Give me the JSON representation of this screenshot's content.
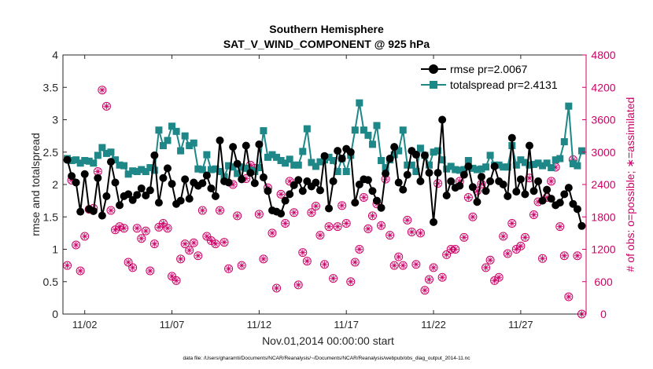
{
  "chart_data": {
    "type": "line",
    "title": "Southern Hemisphere",
    "subtitle": "SAT_V_WIND_COMPONENT @ 925 hPa",
    "xlabel": "Nov.01,2014 00:00:00 start",
    "ylabel": "rmse and totalspread",
    "y2label": "# of obs: o=possible; ∗=assimilated",
    "footer": "data file: /Users/gharamti/Documents/NCAR/Reanalysis/~/Documents/NCAR/Reanalysis/webpub/obs_diag_output_2014-11.nc",
    "xlim": [
      0.75,
      30.75
    ],
    "ylim": [
      0,
      4
    ],
    "y2lim": [
      0,
      4800
    ],
    "x_ticks": [
      2,
      7,
      12,
      17,
      22,
      27
    ],
    "x_tick_labels": [
      "11/02",
      "11/07",
      "11/12",
      "11/17",
      "11/22",
      "11/27"
    ],
    "y_ticks": [
      0,
      0.5,
      1,
      1.5,
      2,
      2.5,
      3,
      3.5,
      4
    ],
    "y_tick_labels": [
      "0",
      "0.5",
      "1",
      "1.5",
      "2",
      "2.5",
      "3",
      "3.5",
      "4"
    ],
    "y2_ticks": [
      0,
      600,
      1200,
      1800,
      2400,
      3000,
      3600,
      4200,
      4800
    ],
    "y2_tick_labels": [
      "0",
      "600",
      "1200",
      "1800",
      "2400",
      "3000",
      "3600",
      "4200",
      "4800"
    ],
    "colors": {
      "rmse": "#000000",
      "spread": "#1e8787",
      "obs": "#cc0066",
      "axis": "#262626"
    },
    "legend": [
      {
        "name": "rmse pr=2.0067",
        "series": "rmse"
      },
      {
        "name": "totalspread pr=2.4131",
        "series": "spread"
      }
    ],
    "series": [
      {
        "name": "rmse",
        "x": [
          1.0,
          1.25,
          1.5,
          1.75,
          2.0,
          2.25,
          2.5,
          2.75,
          3.0,
          3.25,
          3.5,
          3.75,
          4.0,
          4.25,
          4.5,
          4.75,
          5.0,
          5.25,
          5.5,
          5.75,
          6.0,
          6.25,
          6.5,
          6.75,
          7.0,
          7.25,
          7.5,
          7.75,
          8.0,
          8.25,
          8.5,
          8.75,
          9.0,
          9.25,
          9.5,
          9.75,
          10.0,
          10.25,
          10.5,
          10.75,
          11.0,
          11.25,
          11.5,
          11.75,
          12.0,
          12.25,
          12.5,
          12.75,
          13.0,
          13.25,
          13.5,
          13.75,
          14.0,
          14.25,
          14.5,
          14.75,
          15.0,
          15.25,
          15.5,
          15.75,
          16.0,
          16.25,
          16.5,
          16.75,
          17.0,
          17.25,
          17.5,
          17.75,
          18.0,
          18.25,
          18.5,
          18.75,
          19.0,
          19.25,
          19.5,
          19.75,
          20.0,
          20.25,
          20.5,
          20.75,
          21.0,
          21.25,
          21.5,
          21.75,
          22.0,
          22.25,
          22.5,
          22.75,
          23.0,
          23.25,
          23.5,
          23.75,
          24.0,
          24.25,
          24.5,
          24.75,
          25.0,
          25.25,
          25.5,
          25.75,
          26.0,
          26.25,
          26.5,
          26.75,
          27.0,
          27.25,
          27.5,
          27.75,
          28.0,
          28.25,
          28.5,
          28.75,
          29.0,
          29.25,
          29.5,
          29.75,
          30.0,
          30.25,
          30.5
        ],
        "values": [
          2.38,
          2.13,
          2.03,
          1.58,
          2.16,
          1.62,
          1.59,
          2.1,
          1.52,
          1.82,
          2.35,
          2.03,
          1.68,
          1.82,
          1.85,
          1.76,
          1.84,
          1.94,
          1.83,
          1.91,
          2.45,
          1.72,
          2.1,
          2.25,
          2.01,
          1.7,
          1.75,
          2.08,
          1.78,
          2.03,
          1.98,
          2.02,
          2.14,
          1.94,
          1.82,
          2.68,
          2.05,
          2.03,
          2.58,
          2.32,
          2.08,
          2.6,
          2.18,
          2.02,
          2.62,
          2.11,
          1.9,
          1.6,
          1.58,
          1.55,
          1.75,
          1.85,
          1.99,
          2.07,
          1.9,
          2.05,
          1.97,
          2.03,
          1.91,
          2.44,
          1.63,
          2.05,
          2.52,
          2.4,
          2.55,
          2.5,
          1.72,
          2.0,
          2.08,
          2.07,
          1.9,
          1.75,
          1.64,
          2.17,
          2.4,
          2.58,
          2.03,
          1.92,
          2.15,
          2.52,
          2.46,
          2.05,
          2.45,
          2.18,
          1.42,
          2.18,
          3.0,
          1.83,
          2.05,
          1.95,
          1.98,
          2.15,
          2.28,
          1.96,
          1.73,
          2.12,
          1.9,
          2.05,
          2.28,
          2.05,
          2.0,
          1.82,
          2.72,
          1.89,
          2.08,
          1.85,
          2.6,
          1.9,
          2.05,
          1.75,
          1.92,
          1.78,
          1.68,
          1.72,
          1.85,
          1.95,
          1.7,
          1.62,
          1.36
        ],
        "color": "#000000"
      },
      {
        "name": "totalspread",
        "x": [
          1.0,
          1.25,
          1.5,
          1.75,
          2.0,
          2.25,
          2.5,
          2.75,
          3.0,
          3.25,
          3.5,
          3.75,
          4.0,
          4.25,
          4.5,
          4.75,
          5.0,
          5.25,
          5.5,
          5.75,
          6.0,
          6.25,
          6.5,
          6.75,
          7.0,
          7.25,
          7.5,
          7.75,
          8.0,
          8.25,
          8.5,
          8.75,
          9.0,
          9.25,
          9.5,
          9.75,
          10.0,
          10.25,
          10.5,
          10.75,
          11.0,
          11.25,
          11.5,
          11.75,
          12.0,
          12.25,
          12.5,
          12.75,
          13.0,
          13.25,
          13.5,
          13.75,
          14.0,
          14.25,
          14.5,
          14.75,
          15.0,
          15.25,
          15.5,
          15.75,
          16.0,
          16.25,
          16.5,
          16.75,
          17.0,
          17.25,
          17.5,
          17.75,
          18.0,
          18.25,
          18.5,
          18.75,
          19.0,
          19.25,
          19.5,
          19.75,
          20.0,
          20.25,
          20.5,
          20.75,
          21.0,
          21.25,
          21.5,
          21.75,
          22.0,
          22.25,
          22.5,
          22.75,
          23.0,
          23.25,
          23.5,
          23.75,
          24.0,
          24.25,
          24.5,
          24.75,
          25.0,
          25.25,
          25.5,
          25.75,
          26.0,
          26.25,
          26.5,
          26.75,
          27.0,
          27.25,
          27.5,
          27.75,
          28.0,
          28.25,
          28.5,
          28.75,
          29.0,
          29.25,
          29.5,
          29.75,
          30.0,
          30.25,
          30.5
        ],
        "values": [
          2.4,
          2.37,
          2.38,
          2.33,
          2.37,
          2.36,
          2.33,
          2.45,
          2.57,
          2.48,
          2.5,
          2.38,
          2.3,
          2.29,
          2.16,
          2.21,
          2.2,
          2.23,
          2.2,
          2.26,
          2.22,
          2.84,
          2.6,
          2.68,
          2.9,
          2.82,
          2.52,
          2.75,
          2.6,
          2.64,
          2.24,
          2.23,
          2.46,
          2.23,
          2.24,
          2.2,
          2.12,
          2.29,
          2.27,
          2.17,
          2.27,
          2.25,
          2.22,
          2.2,
          2.26,
          2.83,
          2.42,
          2.46,
          2.42,
          2.37,
          2.33,
          2.39,
          2.3,
          2.3,
          2.51,
          2.86,
          2.34,
          2.28,
          2.35,
          2.38,
          2.42,
          2.37,
          2.2,
          2.4,
          2.2,
          2.45,
          2.84,
          3.26,
          2.84,
          2.76,
          2.62,
          2.91,
          2.37,
          2.26,
          2.38,
          2.46,
          2.52,
          2.84,
          2.3,
          2.3,
          2.2,
          2.56,
          2.45,
          2.3,
          2.5,
          2.52,
          2.38,
          2.24,
          2.28,
          2.23,
          2.22,
          2.23,
          2.37,
          2.25,
          2.23,
          2.24,
          2.27,
          2.45,
          2.3,
          2.3,
          2.27,
          2.27,
          2.6,
          2.3,
          2.38,
          2.34,
          2.3,
          2.31,
          2.33,
          2.29,
          2.33,
          2.26,
          2.38,
          2.4,
          2.66,
          3.21,
          2.32,
          2.29,
          2.52
        ],
        "color": "#1e8787"
      },
      {
        "name": "obs possible / assimilated",
        "axis": "right",
        "x": [
          1.0,
          1.25,
          1.5,
          1.75,
          2.0,
          2.25,
          2.5,
          2.75,
          3.0,
          3.25,
          3.5,
          3.75,
          4.0,
          4.25,
          4.5,
          4.75,
          5.0,
          5.25,
          5.5,
          5.75,
          6.0,
          6.25,
          6.5,
          6.75,
          7.0,
          7.25,
          7.5,
          7.75,
          8.0,
          8.25,
          8.5,
          8.75,
          9.0,
          9.25,
          9.5,
          9.75,
          10.0,
          10.25,
          10.5,
          10.75,
          11.0,
          11.25,
          11.5,
          11.75,
          12.0,
          12.25,
          12.5,
          12.75,
          13.0,
          13.25,
          13.5,
          13.75,
          14.0,
          14.25,
          14.5,
          14.75,
          15.0,
          15.25,
          15.5,
          15.75,
          16.0,
          16.25,
          16.5,
          16.75,
          17.0,
          17.25,
          17.5,
          17.75,
          18.0,
          18.25,
          18.5,
          18.75,
          19.0,
          19.25,
          19.5,
          19.75,
          20.0,
          20.25,
          20.5,
          20.75,
          21.0,
          21.25,
          21.5,
          21.75,
          22.0,
          22.25,
          22.5,
          22.75,
          23.0,
          23.25,
          23.5,
          23.75,
          24.0,
          24.25,
          24.5,
          24.75,
          25.0,
          25.25,
          25.5,
          25.75,
          26.0,
          26.25,
          26.5,
          26.75,
          27.0,
          27.25,
          27.5,
          27.75,
          28.0,
          28.25,
          28.5,
          28.75,
          29.0,
          29.25,
          29.5,
          29.75,
          30.0,
          30.25,
          30.5
        ],
        "values": [
          900,
          2480,
          1280,
          800,
          1440,
          1940,
          1960,
          2640,
          4150,
          3850,
          1920,
          1560,
          1620,
          1590,
          960,
          860,
          1590,
          1400,
          1540,
          800,
          1300,
          1610,
          1680,
          1590,
          700,
          620,
          1020,
          1300,
          1180,
          1320,
          1080,
          1920,
          1440,
          1360,
          1300,
          1920,
          1330,
          840,
          2400,
          1820,
          900,
          2510,
          2760,
          2700,
          1850,
          1020,
          2340,
          1500,
          480,
          2220,
          1680,
          2460,
          1880,
          540,
          1140,
          980,
          1880,
          2000,
          1460,
          920,
          1620,
          660,
          1620,
          2010,
          1680,
          600,
          960,
          1200,
          2160,
          1580,
          1820,
          2040,
          1640,
          2500,
          1460,
          900,
          1060,
          900,
          1740,
          1520,
          920,
          1500,
          440,
          640,
          860,
          2420,
          680,
          1100,
          1200,
          1200,
          2460,
          1420,
          2160,
          1800,
          2280,
          2410,
          860,
          1000,
          620,
          680,
          1440,
          1120,
          1680,
          1200,
          1260,
          1420,
          2520,
          1840,
          2080,
          1030,
          2160,
          2460,
          2720,
          1620,
          1080,
          320,
          2860,
          1080,
          0
        ],
        "color": "#cc0066"
      }
    ]
  }
}
